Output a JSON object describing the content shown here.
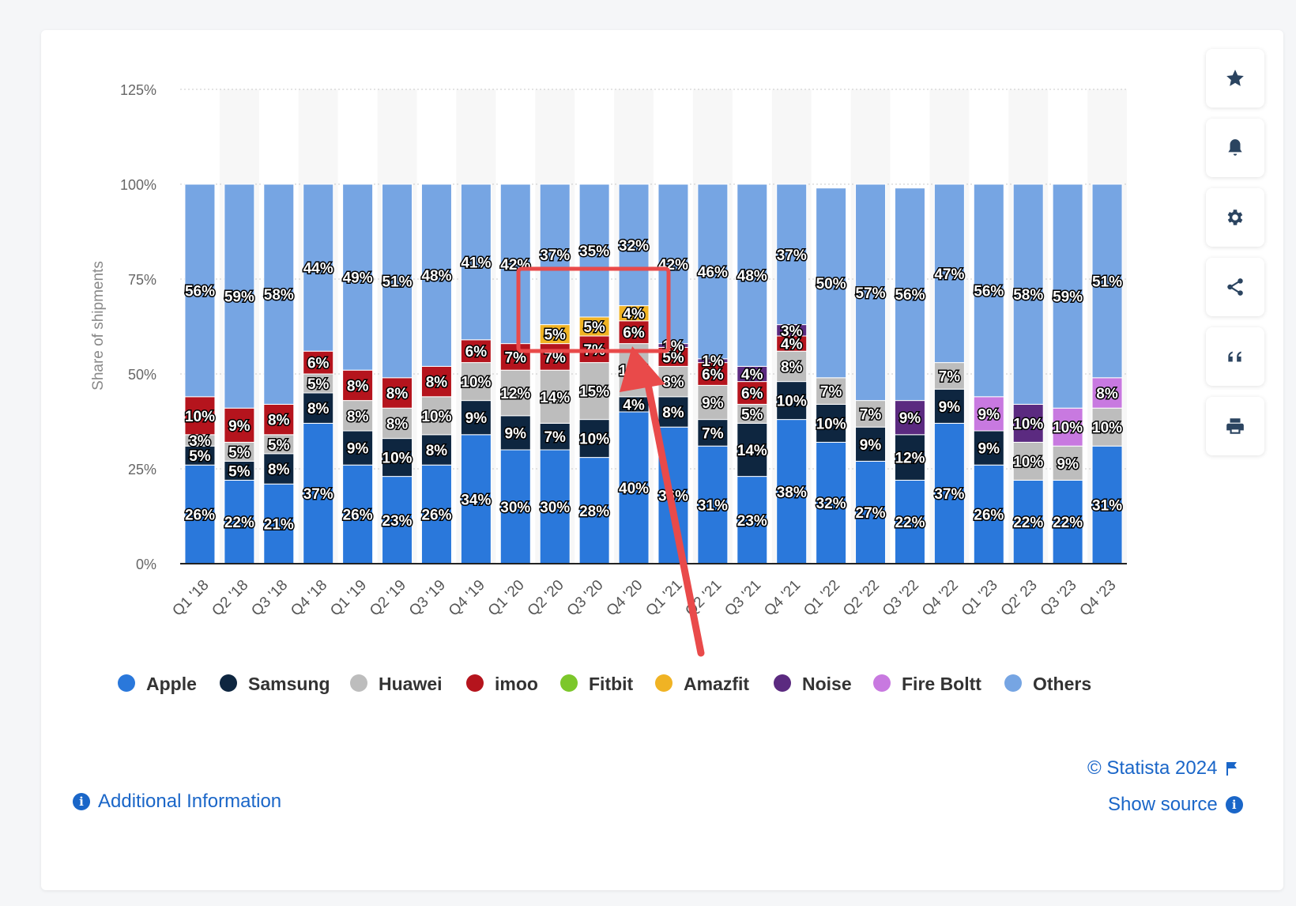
{
  "ui": {
    "copyright": "© Statista 2024",
    "show_source": "Show source",
    "additional_info": "Additional Information",
    "side_buttons": [
      "star-icon",
      "bell-icon",
      "gear-icon",
      "share-icon",
      "quote-icon",
      "print-icon"
    ]
  },
  "chart_data": {
    "type": "bar",
    "stacked": true,
    "ylabel": "Share of shipments",
    "ylim": [
      0,
      125
    ],
    "yticks": [
      "0%",
      "25%",
      "50%",
      "75%",
      "100%",
      "125%"
    ],
    "grid": "horizontal dotted",
    "legend_position": "bottom",
    "categories": [
      "Q1 '18",
      "Q2 '18",
      "Q3 '18",
      "Q4 '18",
      "Q1 '19",
      "Q2 '19",
      "Q3 '19",
      "Q4 '19",
      "Q1 '20",
      "Q2 '20",
      "Q3 '20",
      "Q4 '20",
      "Q1 '21",
      "Q2 '21",
      "Q3 '21",
      "Q4 '21",
      "Q1 '22",
      "Q2 '22",
      "Q3 '22",
      "Q4 '22",
      "Q1 '23",
      "Q2' 23",
      "Q3 '23",
      "Q4 '23"
    ],
    "series": [
      {
        "name": "Apple",
        "color": "#2a78db",
        "values": [
          26,
          22,
          21,
          37,
          26,
          23,
          26,
          34,
          30,
          30,
          28,
          40,
          36,
          31,
          23,
          38,
          32,
          27,
          22,
          37,
          26,
          22,
          22,
          31
        ]
      },
      {
        "name": "Samsung",
        "color": "#0e2640",
        "values": [
          5,
          5,
          8,
          8,
          9,
          10,
          8,
          9,
          9,
          7,
          10,
          4,
          8,
          7,
          14,
          10,
          10,
          9,
          12,
          9,
          9,
          0,
          0,
          0
        ]
      },
      {
        "name": "Huawei",
        "color": "#bdbdbd",
        "values": [
          3,
          5,
          5,
          5,
          8,
          8,
          10,
          10,
          12,
          14,
          15,
          14,
          8,
          9,
          5,
          8,
          7,
          7,
          0,
          7,
          0,
          10,
          9,
          10
        ]
      },
      {
        "name": "imoo",
        "color": "#b5141d",
        "values": [
          10,
          9,
          8,
          6,
          8,
          8,
          8,
          6,
          7,
          7,
          7,
          6,
          5,
          6,
          6,
          4,
          0,
          0,
          0,
          0,
          0,
          0,
          0,
          0
        ]
      },
      {
        "name": "Fitbit",
        "color": "#7cc72b",
        "values": [
          0,
          0,
          0,
          0,
          0,
          0,
          0,
          0,
          0,
          0,
          0,
          0,
          0,
          0,
          0,
          0,
          0,
          0,
          0,
          0,
          0,
          0,
          0,
          0
        ]
      },
      {
        "name": "Amazfit",
        "color": "#f0b324",
        "values": [
          0,
          0,
          0,
          0,
          0,
          0,
          0,
          0,
          0,
          5,
          5,
          4,
          0,
          0,
          0,
          0,
          0,
          0,
          0,
          0,
          0,
          0,
          0,
          0
        ]
      },
      {
        "name": "Noise",
        "color": "#5b2a80",
        "values": [
          0,
          0,
          0,
          0,
          0,
          0,
          0,
          0,
          0,
          0,
          0,
          0,
          1,
          1,
          4,
          3,
          0,
          0,
          9,
          0,
          0,
          10,
          0,
          0
        ]
      },
      {
        "name": "Fire Boltt",
        "color": "#c879e0",
        "values": [
          0,
          0,
          0,
          0,
          0,
          0,
          0,
          0,
          0,
          0,
          0,
          0,
          0,
          0,
          0,
          0,
          0,
          0,
          0,
          0,
          9,
          0,
          10,
          8
        ]
      },
      {
        "name": "Others",
        "color": "#76a5e3",
        "values": [
          56,
          59,
          58,
          44,
          49,
          51,
          48,
          41,
          42,
          37,
          35,
          32,
          42,
          46,
          48,
          37,
          50,
          57,
          56,
          47,
          56,
          58,
          59,
          51
        ]
      }
    ]
  }
}
